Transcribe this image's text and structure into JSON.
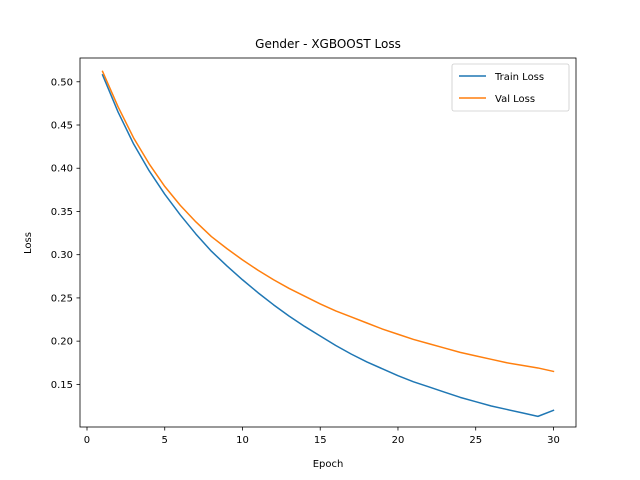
{
  "chart_data": {
    "type": "line",
    "title": "Gender - XGBOOST Loss",
    "xlabel": "Epoch",
    "ylabel": "Loss",
    "xlim": [
      -0.45,
      31.45
    ],
    "ylim": [
      0.1007,
      0.5275
    ],
    "xticks": [
      0,
      5,
      10,
      15,
      20,
      25,
      30
    ],
    "xtick_labels": [
      "0",
      "5",
      "10",
      "15",
      "20",
      "25",
      "30"
    ],
    "yticks": [
      0.15,
      0.2,
      0.25,
      0.3,
      0.35,
      0.4,
      0.45,
      0.5
    ],
    "ytick_labels": [
      "0.15",
      "0.20",
      "0.25",
      "0.30",
      "0.35",
      "0.40",
      "0.45",
      "0.50"
    ],
    "grid": false,
    "legend": "top-right",
    "x": [
      1,
      2,
      3,
      4,
      5,
      6,
      7,
      8,
      9,
      10,
      11,
      12,
      13,
      14,
      15,
      16,
      17,
      18,
      19,
      20,
      21,
      22,
      23,
      24,
      25,
      26,
      27,
      28,
      29,
      30
    ],
    "series": [
      {
        "name": "Train Loss",
        "color": "#1f77b4",
        "values": [
          0.508,
          0.465,
          0.428,
          0.397,
          0.37,
          0.346,
          0.324,
          0.304,
          0.287,
          0.271,
          0.256,
          0.242,
          0.229,
          0.217,
          0.206,
          0.195,
          0.185,
          0.176,
          0.168,
          0.16,
          0.153,
          0.147,
          0.141,
          0.135,
          0.13,
          0.125,
          0.121,
          0.117,
          0.113,
          0.12
        ]
      },
      {
        "name": "Val Loss",
        "color": "#ff7f0e",
        "values": [
          0.512,
          0.471,
          0.435,
          0.405,
          0.379,
          0.357,
          0.338,
          0.321,
          0.307,
          0.294,
          0.282,
          0.271,
          0.261,
          0.252,
          0.243,
          0.235,
          0.228,
          0.221,
          0.214,
          0.208,
          0.202,
          0.197,
          0.192,
          0.187,
          0.183,
          0.179,
          0.175,
          0.172,
          0.169,
          0.165
        ]
      }
    ]
  }
}
